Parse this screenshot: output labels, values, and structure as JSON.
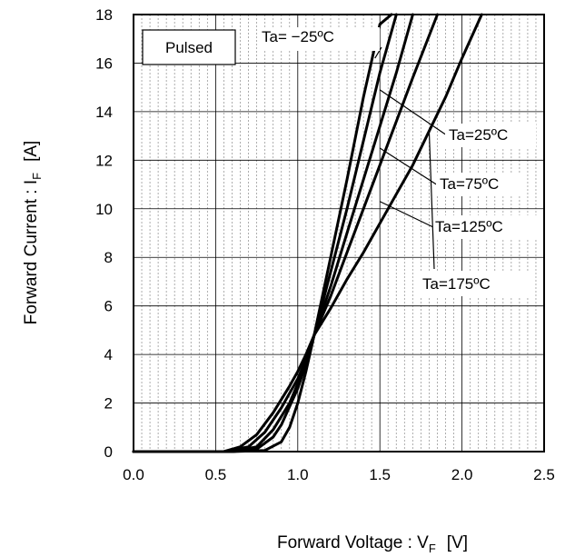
{
  "chart_data": {
    "type": "line",
    "title": "",
    "xlabel": {
      "main": "Forward Voltage : V",
      "sub": "F",
      "unit": "[V]"
    },
    "ylabel": {
      "main": "Forward Current : I",
      "sub": "F",
      "unit": "[A]"
    },
    "xlim": [
      0,
      2.5
    ],
    "ylim": [
      0,
      18
    ],
    "x_ticks": [
      "0.0",
      "0.5",
      "1.0",
      "1.5",
      "2.0",
      "2.5"
    ],
    "y_ticks": [
      "0",
      "2",
      "4",
      "6",
      "8",
      "10",
      "12",
      "14",
      "16",
      "18"
    ],
    "grid": {
      "major": true,
      "minor_x": true
    },
    "badge": "Pulsed",
    "series": [
      {
        "name": "Ta= −25ºC",
        "x": [
          0.0,
          0.6,
          0.8,
          0.9,
          0.95,
          1.0,
          1.05,
          1.1,
          1.15,
          1.2,
          1.3,
          1.4,
          1.5,
          1.57
        ],
        "y": [
          0,
          0,
          0.05,
          0.4,
          1.0,
          2.0,
          3.3,
          4.8,
          6.4,
          8.0,
          11.2,
          14.6,
          17.6,
          18
        ]
      },
      {
        "name": "Ta=25ºC",
        "x": [
          0.0,
          0.6,
          0.75,
          0.85,
          0.9,
          1.0,
          1.05,
          1.1,
          1.2,
          1.3,
          1.4,
          1.5,
          1.6
        ],
        "y": [
          0,
          0,
          0.1,
          0.6,
          1.1,
          2.6,
          3.6,
          4.8,
          7.4,
          10.0,
          12.8,
          15.6,
          18
        ]
      },
      {
        "name": "Ta=75ºC",
        "x": [
          0.0,
          0.6,
          0.75,
          0.85,
          0.95,
          1.0,
          1.05,
          1.1,
          1.2,
          1.3,
          1.4,
          1.5,
          1.6,
          1.7
        ],
        "y": [
          0,
          0,
          0.2,
          0.9,
          2.0,
          2.8,
          3.7,
          4.8,
          6.8,
          9.0,
          11.2,
          13.4,
          15.6,
          18
        ]
      },
      {
        "name": "Ta=125ºC",
        "x": [
          0.0,
          0.55,
          0.7,
          0.8,
          0.9,
          1.0,
          1.05,
          1.1,
          1.2,
          1.3,
          1.4,
          1.5,
          1.6,
          1.7,
          1.85
        ],
        "y": [
          0,
          0,
          0.2,
          0.8,
          1.8,
          3.0,
          3.8,
          4.8,
          6.4,
          8.2,
          10.0,
          11.8,
          13.6,
          15.4,
          18
        ]
      },
      {
        "name": "Ta=175ºC",
        "x": [
          0.0,
          0.55,
          0.65,
          0.75,
          0.85,
          0.95,
          1.0,
          1.05,
          1.1,
          1.2,
          1.3,
          1.4,
          1.5,
          1.6,
          1.7,
          1.8,
          1.9,
          2.0,
          2.12
        ],
        "y": [
          0,
          0,
          0.2,
          0.7,
          1.6,
          2.7,
          3.3,
          4.0,
          4.8,
          5.9,
          7.1,
          8.2,
          9.4,
          10.6,
          11.8,
          13.2,
          14.6,
          16.2,
          18
        ]
      }
    ],
    "annotations": [
      {
        "label": "Ta= −25ºC",
        "point_at": [
          1.47,
          16.2
        ]
      },
      {
        "label": "Ta=25ºC",
        "point_at": [
          1.5,
          14.9
        ]
      },
      {
        "label": "Ta=75ºC",
        "point_at": [
          1.5,
          12.5
        ]
      },
      {
        "label": "Ta=125ºC",
        "point_at": [
          1.5,
          10.3
        ]
      },
      {
        "label": "Ta=175ºC",
        "point_at": [
          1.8,
          13.2
        ]
      }
    ]
  }
}
